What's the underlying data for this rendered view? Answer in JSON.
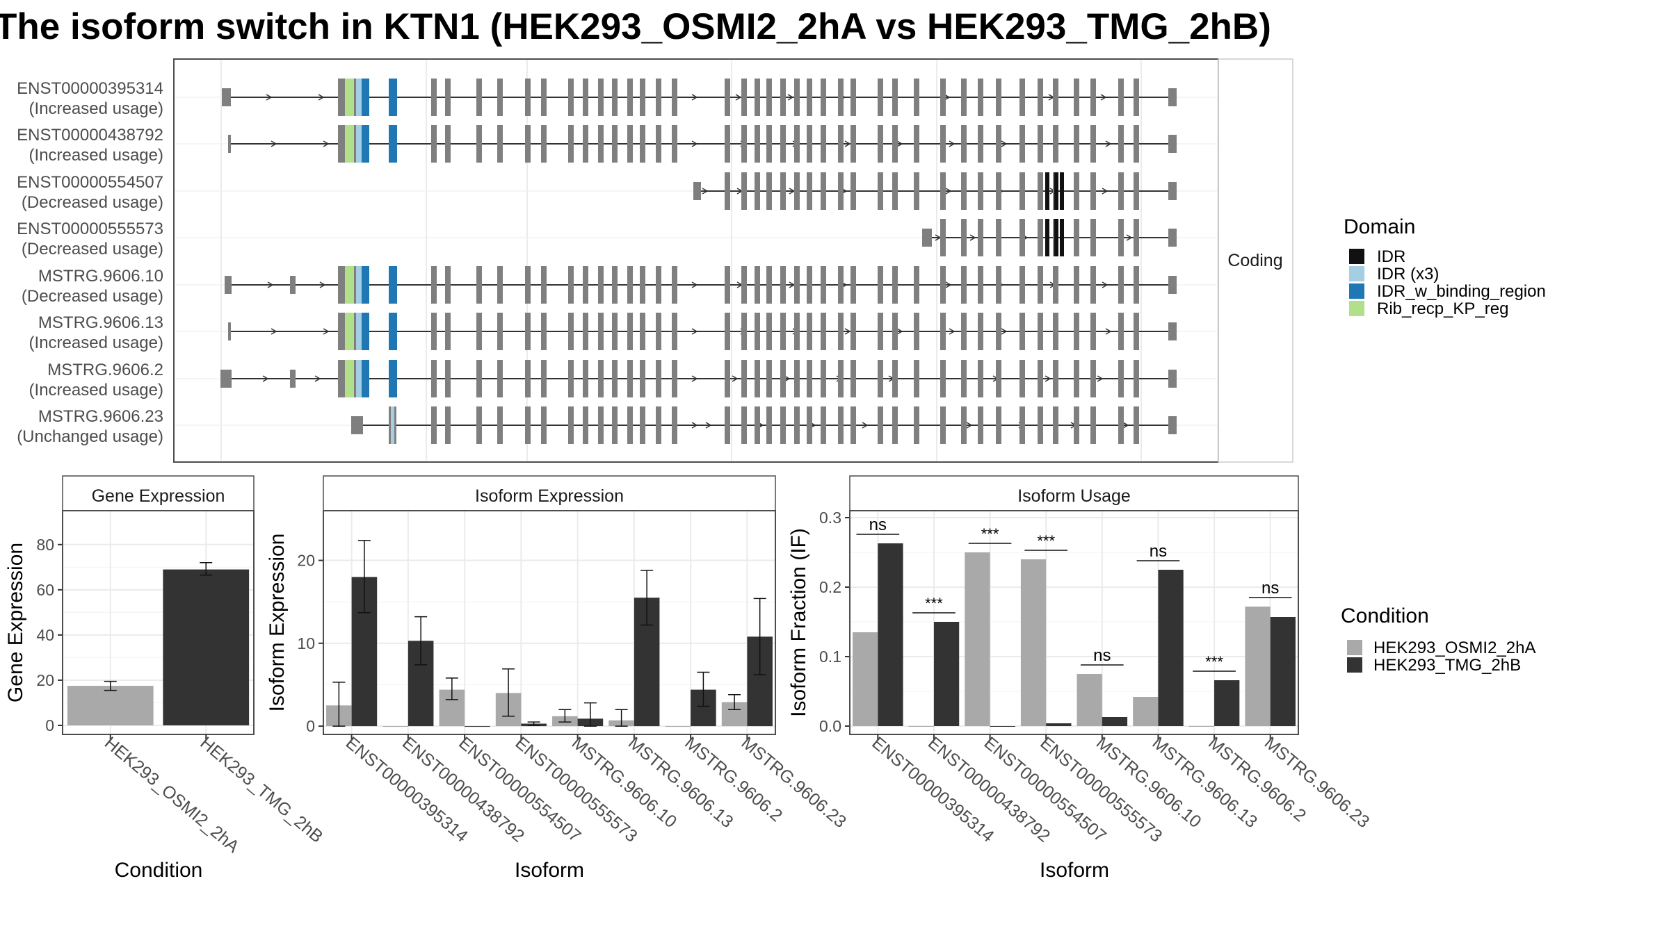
{
  "title": "The isoform switch in KTN1 (HEK293_OSMI2_2hA vs HEK293_TMG_2hB)",
  "colors": {
    "cond1": "#a9a9a9",
    "cond2": "#333333",
    "IDR": "#111111",
    "IDR (x3)": "#a6cee3",
    "IDR_w_binding_region": "#1f78b4",
    "Rib_recp_KP_reg": "#b2df8a",
    "exon": "#7f7f7f",
    "panel_border": "#4d4d4d",
    "grid": "#ebebeb"
  },
  "structure": {
    "strip_label": "Coding",
    "isoforms": [
      {
        "id": "ENST00000395314",
        "note": "(Increased usage)"
      },
      {
        "id": "ENST00000438792",
        "note": "(Increased usage)"
      },
      {
        "id": "ENST00000554507",
        "note": "(Decreased usage)"
      },
      {
        "id": "ENST00000555573",
        "note": "(Decreased usage)"
      },
      {
        "id": "MSTRG.9606.10",
        "note": "(Decreased usage)"
      },
      {
        "id": "MSTRG.9606.13",
        "note": "(Increased usage)"
      },
      {
        "id": "MSTRG.9606.2",
        "note": "(Increased usage)"
      },
      {
        "id": "MSTRG.9606.23",
        "note": "(Unchanged usage)"
      }
    ]
  },
  "domain_legend": {
    "title": "Domain",
    "items": [
      "IDR",
      "IDR (x3)",
      "IDR_w_binding_region",
      "Rib_recp_KP_reg"
    ]
  },
  "condition_legend": {
    "title": "Condition",
    "items": [
      "HEK293_OSMI2_2hA",
      "HEK293_TMG_2hB"
    ]
  },
  "chart_data": [
    {
      "type": "bar",
      "title": "Gene Expression",
      "xlabel": "Condition",
      "ylabel": "Gene Expression",
      "categories": [
        "HEK293_OSMI2_2hA",
        "HEK293_TMG_2hB"
      ],
      "values": [
        17.5,
        69
      ],
      "errors": [
        [
          15.5,
          19.5
        ],
        [
          66.5,
          72
        ]
      ],
      "ylim": [
        -4,
        95
      ],
      "yticks": [
        0,
        20,
        40,
        60,
        80
      ]
    },
    {
      "type": "bar",
      "title": "Isoform Expression",
      "xlabel": "Isoform",
      "ylabel": "Isoform Expression",
      "categories": [
        "ENST00000395314",
        "ENST00000438792",
        "ENST00000554507",
        "ENST00000555573",
        "MSTRG.9606.10",
        "MSTRG.9606.13",
        "MSTRG.9606.2",
        "MSTRG.9606.23"
      ],
      "series": [
        {
          "name": "HEK293_OSMI2_2hA",
          "values": [
            2.5,
            0,
            4.4,
            4.0,
            1.2,
            0.7,
            0,
            2.9
          ],
          "errors": [
            [
              0,
              5.3
            ],
            [
              0,
              0
            ],
            [
              3.2,
              5.8
            ],
            [
              1.2,
              6.9
            ],
            [
              0.5,
              2.0
            ],
            [
              0,
              2.0
            ],
            [
              0,
              0
            ],
            [
              2.0,
              3.8
            ]
          ]
        },
        {
          "name": "HEK293_TMG_2hB",
          "values": [
            18.0,
            10.3,
            0,
            0.3,
            0.9,
            15.5,
            4.4,
            10.8
          ],
          "errors": [
            [
              13.7,
              22.4
            ],
            [
              7.4,
              13.2
            ],
            [
              0,
              0
            ],
            [
              0.1,
              0.5
            ],
            [
              0,
              2.8
            ],
            [
              12.2,
              18.8
            ],
            [
              2.4,
              6.5
            ],
            [
              6.2,
              15.4
            ]
          ]
        }
      ],
      "ylim": [
        -1,
        26
      ],
      "yticks": [
        0,
        10,
        20
      ]
    },
    {
      "type": "bar",
      "title": "Isoform Usage",
      "xlabel": "Isoform",
      "ylabel": "Isoform Fraction (IF)",
      "categories": [
        "ENST00000395314",
        "ENST00000438792",
        "ENST00000554507",
        "ENST00000555573",
        "MSTRG.9606.10",
        "MSTRG.9606.13",
        "MSTRG.9606.2",
        "MSTRG.9606.23"
      ],
      "series": [
        {
          "name": "HEK293_OSMI2_2hA",
          "values": [
            0.135,
            0,
            0.25,
            0.24,
            0.075,
            0.042,
            0,
            0.172
          ]
        },
        {
          "name": "HEK293_TMG_2hB",
          "values": [
            0.263,
            0.15,
            0,
            0.004,
            0.013,
            0.225,
            0.066,
            0.157
          ]
        }
      ],
      "significance": [
        "ns",
        "***",
        "***",
        "***",
        "ns",
        "ns",
        "***",
        "ns"
      ],
      "ylim": [
        -0.012,
        0.31
      ],
      "yticks": [
        0.0,
        0.1,
        0.2,
        0.3
      ]
    }
  ]
}
